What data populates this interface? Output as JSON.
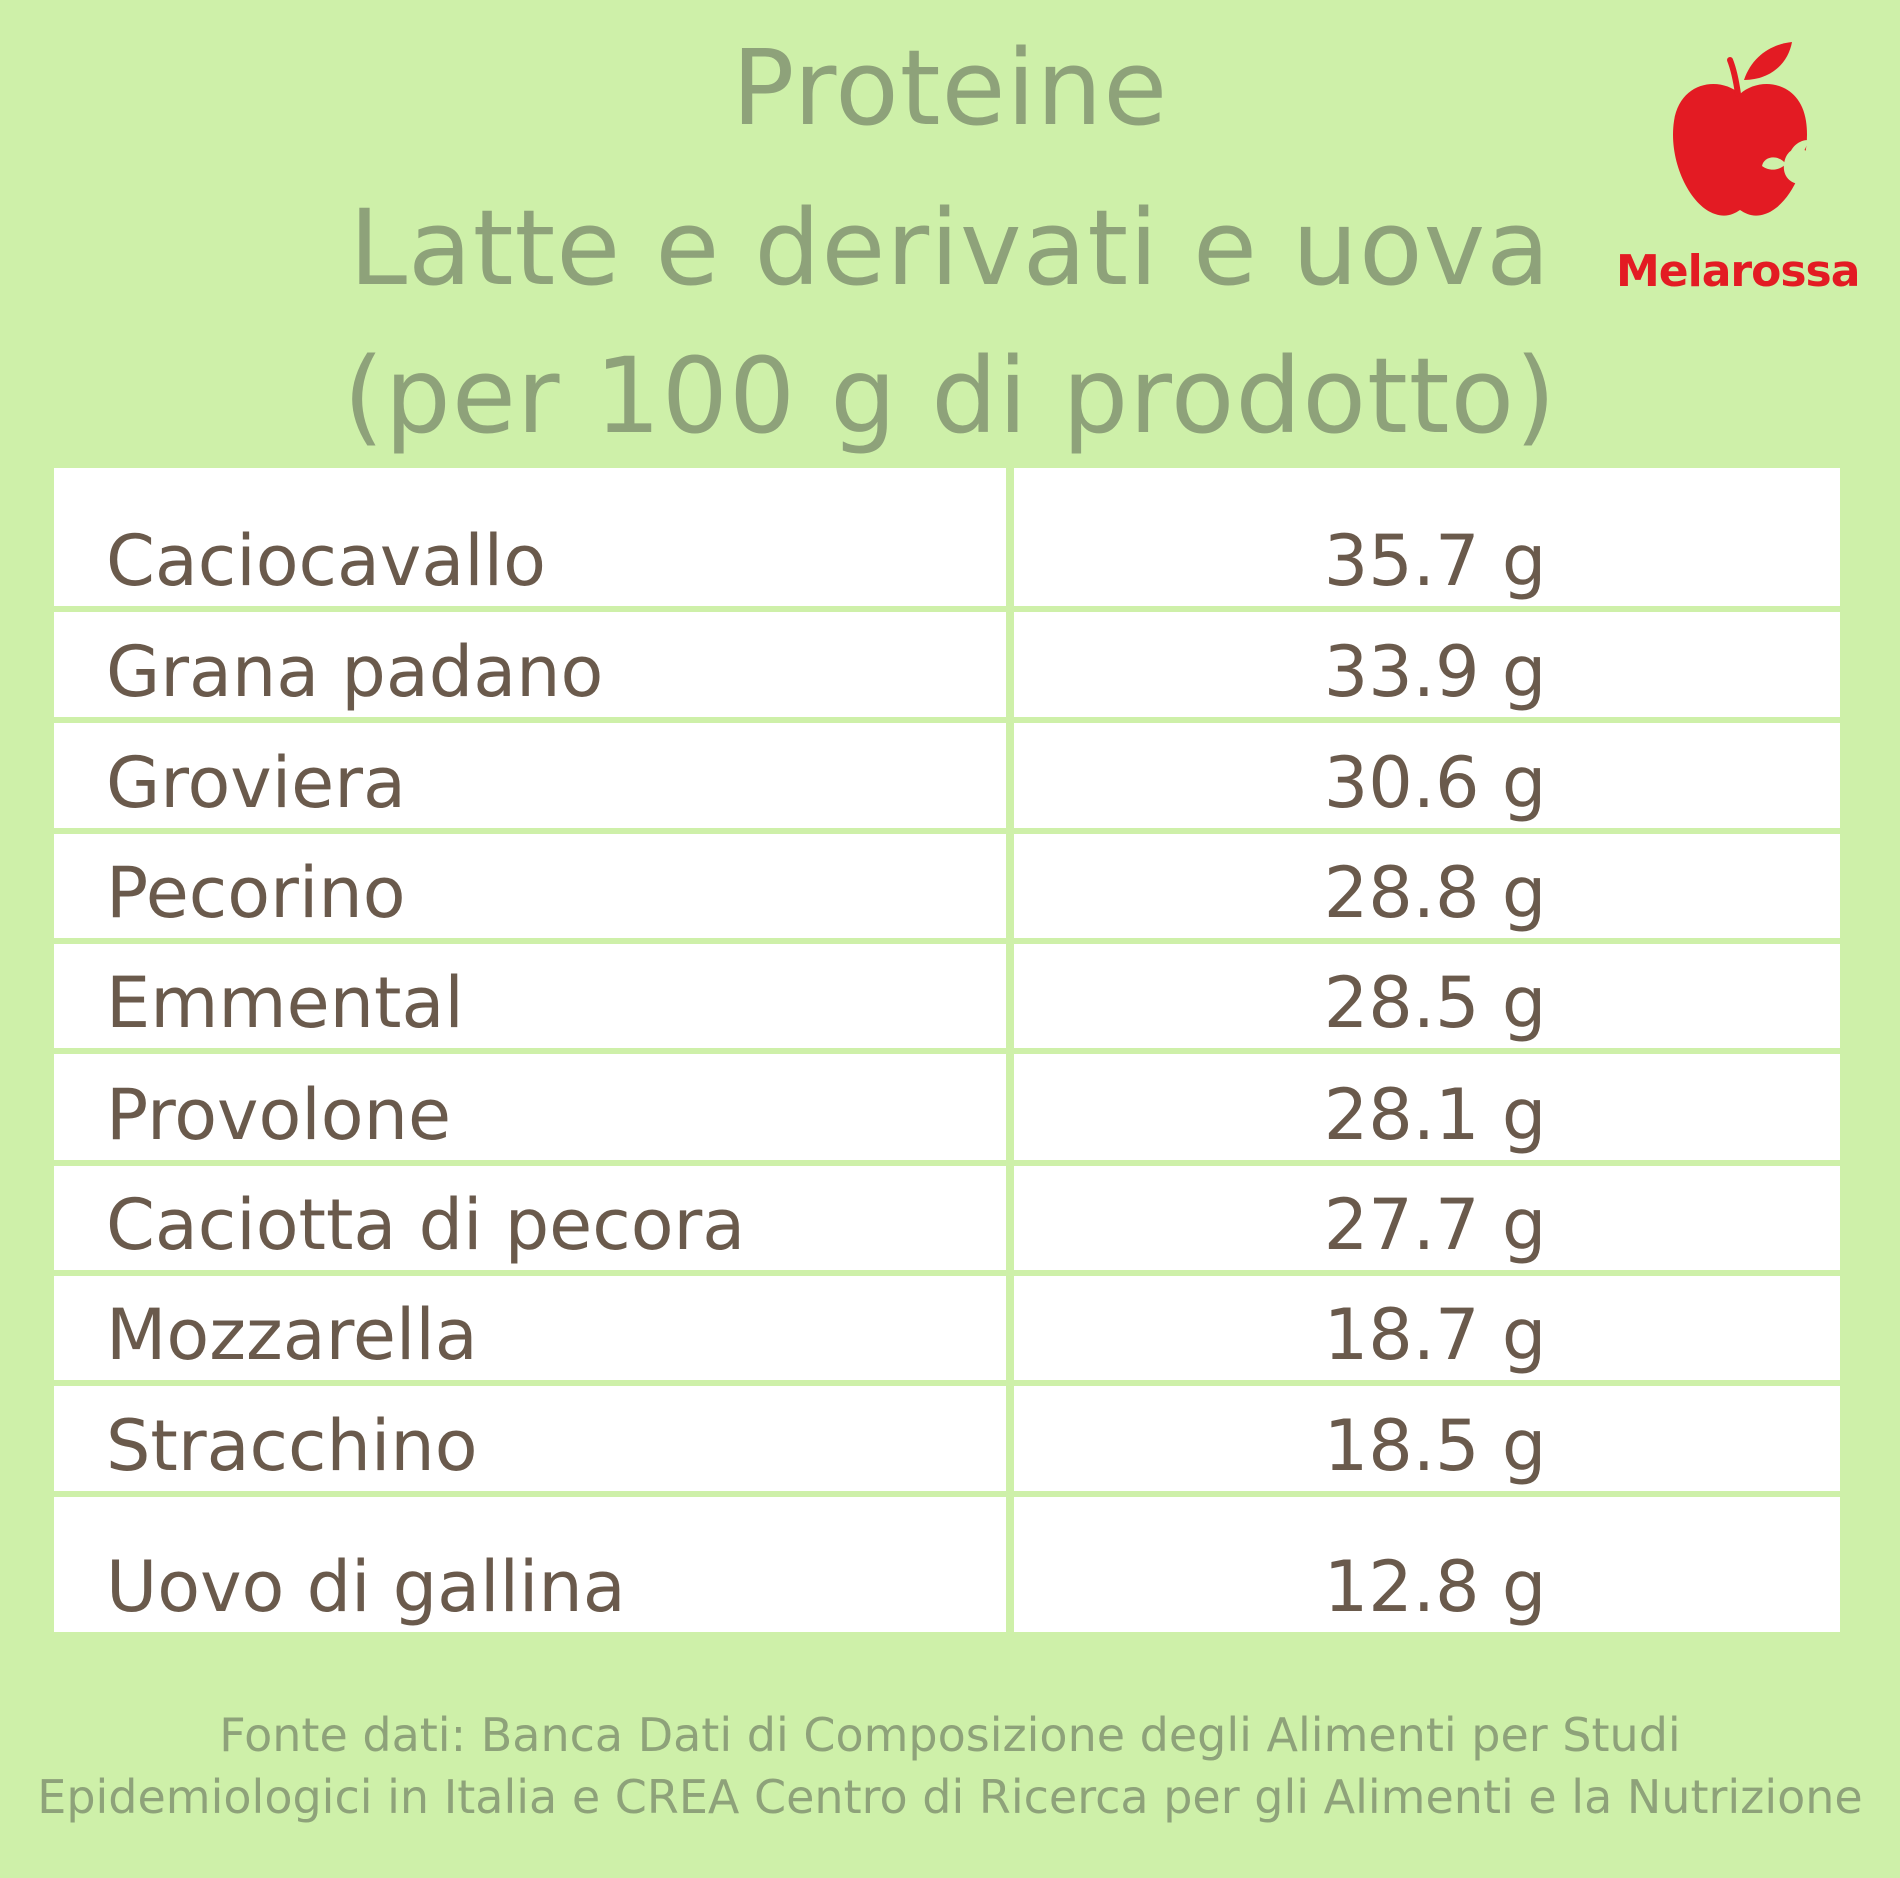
{
  "title": {
    "line1": "Proteine",
    "line2": "Latte e derivati e uova",
    "line3": "(per 100 g di prodotto)"
  },
  "logo": {
    "icon": "apple-icon",
    "label": "Melarossa",
    "color": "#e31b23"
  },
  "colors": {
    "background": "#cef0a9",
    "title": "#8ea27a",
    "cell_text": "#6a5a4c",
    "cell_bg": "#ffffff"
  },
  "table": {
    "rows": [
      {
        "food": "Caciocavallo",
        "protein": "35.7 g"
      },
      {
        "food": "Grana padano",
        "protein": "33.9 g"
      },
      {
        "food": "Groviera",
        "protein": "30.6 g"
      },
      {
        "food": "Pecorino",
        "protein": "28.8 g"
      },
      {
        "food": "Emmental",
        "protein": "28.5 g"
      },
      {
        "food": "Provolone",
        "protein": "28.1 g"
      },
      {
        "food": "Caciotta di pecora",
        "protein": "27.7 g"
      },
      {
        "food": "Mozzarella",
        "protein": "18.7 g"
      },
      {
        "food": "Stracchino",
        "protein": "18.5 g"
      },
      {
        "food": "Uovo di gallina",
        "protein": "12.8 g"
      }
    ]
  },
  "source": {
    "line1": "Fonte dati: Banca Dati di Composizione degli Alimenti per Studi",
    "line2": "Epidemiologici in Italia e CREA Centro di Ricerca per gli Alimenti e la Nutrizione"
  }
}
